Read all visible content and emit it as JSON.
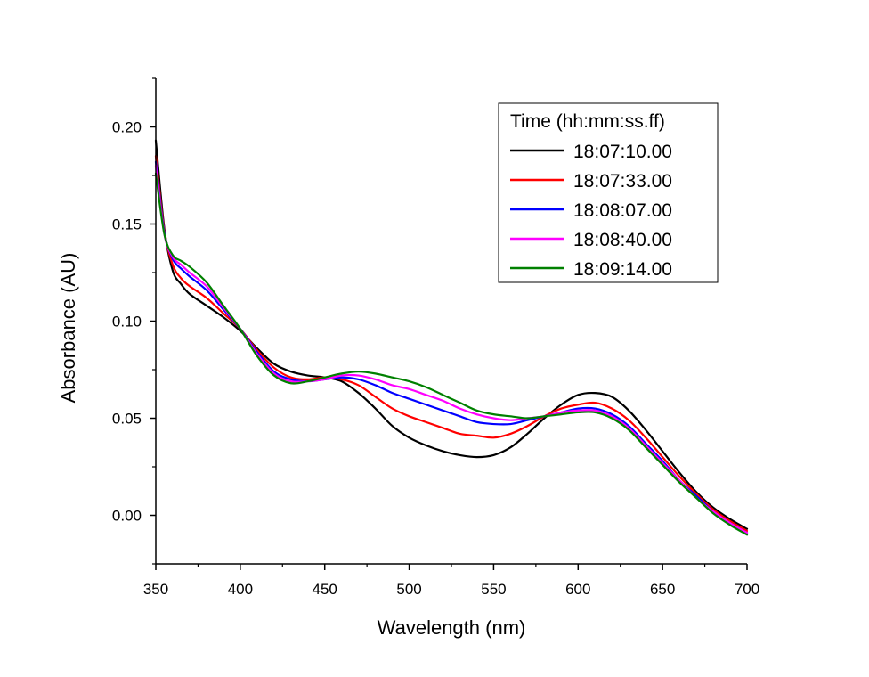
{
  "chart_data": {
    "type": "line",
    "xlabel": "Wavelength (nm)",
    "ylabel": "Absorbance (AU)",
    "xlim": [
      350,
      700
    ],
    "ylim": [
      -0.025,
      0.225
    ],
    "xticks": [
      350,
      400,
      450,
      500,
      550,
      600,
      650,
      700
    ],
    "xtick_labels": [
      "350",
      "400",
      "450",
      "500",
      "550",
      "600",
      "650",
      "700"
    ],
    "yticks": [
      0.0,
      0.05,
      0.1,
      0.15,
      0.2
    ],
    "ytick_labels": [
      "0.00",
      "0.05",
      "0.10",
      "0.15",
      "0.20"
    ],
    "grid": false,
    "legend": {
      "title": "Time (hh:mm:ss.ff)",
      "position": "top-right"
    },
    "x": [
      350,
      355,
      360,
      365,
      370,
      380,
      390,
      400,
      410,
      420,
      430,
      440,
      450,
      460,
      470,
      480,
      490,
      500,
      510,
      520,
      530,
      540,
      550,
      560,
      570,
      580,
      590,
      600,
      610,
      620,
      630,
      640,
      650,
      660,
      670,
      680,
      690,
      700
    ],
    "series": [
      {
        "name": "18:07:10.00",
        "color": "#000000",
        "values": [
          0.193,
          0.148,
          0.126,
          0.119,
          0.114,
          0.108,
          0.102,
          0.095,
          0.086,
          0.078,
          0.074,
          0.072,
          0.071,
          0.069,
          0.063,
          0.055,
          0.046,
          0.04,
          0.036,
          0.033,
          0.031,
          0.03,
          0.031,
          0.035,
          0.042,
          0.05,
          0.057,
          0.062,
          0.063,
          0.061,
          0.054,
          0.044,
          0.033,
          0.022,
          0.012,
          0.004,
          -0.002,
          -0.007
        ]
      },
      {
        "name": "18:07:33.00",
        "color": "#ff0000",
        "values": [
          0.185,
          0.147,
          0.129,
          0.122,
          0.118,
          0.112,
          0.104,
          0.096,
          0.085,
          0.076,
          0.071,
          0.07,
          0.071,
          0.07,
          0.067,
          0.061,
          0.055,
          0.051,
          0.048,
          0.045,
          0.042,
          0.041,
          0.04,
          0.042,
          0.046,
          0.051,
          0.055,
          0.057,
          0.058,
          0.055,
          0.049,
          0.04,
          0.03,
          0.02,
          0.011,
          0.003,
          -0.003,
          -0.008
        ]
      },
      {
        "name": "18:08:07.00",
        "color": "#0000ff",
        "values": [
          0.182,
          0.146,
          0.132,
          0.127,
          0.123,
          0.116,
          0.106,
          0.096,
          0.084,
          0.074,
          0.07,
          0.069,
          0.07,
          0.071,
          0.07,
          0.067,
          0.063,
          0.06,
          0.057,
          0.054,
          0.051,
          0.048,
          0.047,
          0.047,
          0.049,
          0.051,
          0.053,
          0.055,
          0.055,
          0.052,
          0.046,
          0.037,
          0.028,
          0.018,
          0.01,
          0.002,
          -0.004,
          -0.009
        ]
      },
      {
        "name": "18:08:40.00",
        "color": "#ff00ff",
        "values": [
          0.18,
          0.145,
          0.133,
          0.129,
          0.125,
          0.118,
          0.107,
          0.096,
          0.083,
          0.073,
          0.069,
          0.069,
          0.07,
          0.072,
          0.072,
          0.07,
          0.067,
          0.065,
          0.062,
          0.059,
          0.055,
          0.052,
          0.05,
          0.049,
          0.05,
          0.051,
          0.053,
          0.054,
          0.054,
          0.051,
          0.045,
          0.036,
          0.027,
          0.018,
          0.009,
          0.002,
          -0.004,
          -0.009
        ]
      },
      {
        "name": "18:09:14.00",
        "color": "#008000",
        "values": [
          0.176,
          0.145,
          0.134,
          0.131,
          0.128,
          0.12,
          0.108,
          0.096,
          0.082,
          0.072,
          0.068,
          0.069,
          0.071,
          0.073,
          0.074,
          0.073,
          0.071,
          0.069,
          0.066,
          0.062,
          0.058,
          0.054,
          0.052,
          0.051,
          0.05,
          0.051,
          0.052,
          0.053,
          0.053,
          0.05,
          0.044,
          0.035,
          0.026,
          0.017,
          0.009,
          0.001,
          -0.005,
          -0.01
        ]
      }
    ]
  }
}
